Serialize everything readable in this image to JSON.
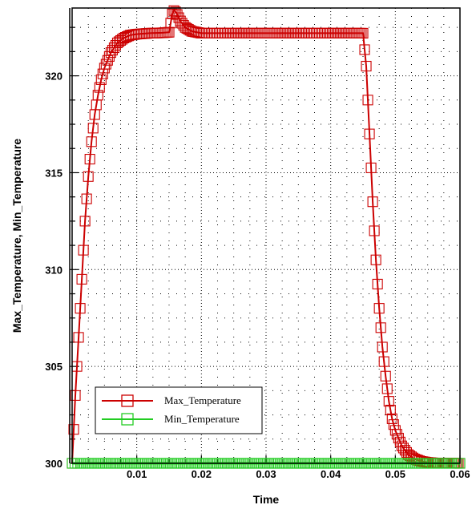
{
  "chart_data": {
    "type": "line",
    "title": "",
    "xlabel": "Time",
    "ylabel": "Max_Temperature, Min_Temperature",
    "xlim": [
      0,
      0.06
    ],
    "ylim": [
      300,
      323.5
    ],
    "x_ticks": [
      {
        "value": 0.01,
        "label": "0.01"
      },
      {
        "value": 0.02,
        "label": "0.02"
      },
      {
        "value": 0.03,
        "label": "0.03"
      },
      {
        "value": 0.04,
        "label": "0.04"
      },
      {
        "value": 0.05,
        "label": "0.05"
      },
      {
        "value": 0.06,
        "label": "0.06"
      }
    ],
    "y_ticks": [
      {
        "value": 300,
        "label": "300"
      },
      {
        "value": 305,
        "label": "305"
      },
      {
        "value": 310,
        "label": "310"
      },
      {
        "value": 315,
        "label": "315"
      },
      {
        "value": 320,
        "label": "320"
      }
    ],
    "grid": true,
    "legend_position": "bottom-left",
    "series": [
      {
        "name": "Max_Temperature",
        "color": "#cc0000",
        "marker": "square",
        "x": [
          0.0,
          0.0005,
          0.001,
          0.0015,
          0.002,
          0.0025,
          0.003,
          0.0035,
          0.004,
          0.0045,
          0.005,
          0.006,
          0.007,
          0.008,
          0.009,
          0.01,
          0.012,
          0.014,
          0.015,
          0.0155,
          0.0158,
          0.0162,
          0.0168,
          0.0175,
          0.0185,
          0.02,
          0.025,
          0.03,
          0.035,
          0.04,
          0.045,
          0.0455,
          0.046,
          0.0465,
          0.047,
          0.0475,
          0.048,
          0.0485,
          0.049,
          0.0495,
          0.05,
          0.051,
          0.052,
          0.053,
          0.054,
          0.055,
          0.056,
          0.058,
          0.06
        ],
        "y": [
          300.0,
          303.5,
          306.5,
          309.5,
          312.5,
          314.8,
          316.6,
          318.0,
          319.0,
          319.8,
          320.4,
          321.2,
          321.7,
          321.95,
          322.1,
          322.15,
          322.2,
          322.22,
          322.25,
          323.2,
          323.4,
          323.2,
          322.8,
          322.5,
          322.3,
          322.2,
          322.2,
          322.2,
          322.2,
          322.2,
          322.2,
          320.5,
          317.0,
          313.5,
          310.5,
          308.0,
          306.0,
          304.5,
          303.2,
          302.3,
          301.7,
          300.9,
          300.45,
          300.22,
          300.1,
          300.05,
          300.02,
          300.01,
          300.0
        ]
      },
      {
        "name": "Min_Temperature",
        "color": "#22cc22",
        "marker": "square",
        "x": [
          0.0,
          0.06
        ],
        "y": [
          300.0,
          300.0
        ]
      }
    ]
  }
}
